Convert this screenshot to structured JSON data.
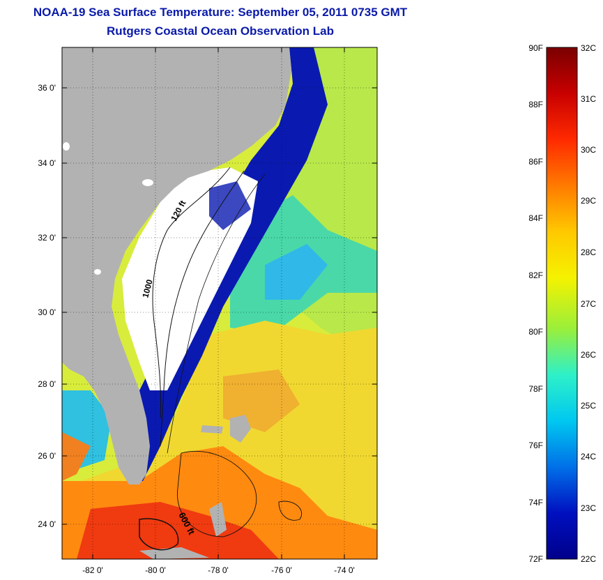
{
  "title": {
    "line1": "NOAA-19 Sea Surface Temperature:  September 05, 2011 0735 GMT",
    "line2": "Rutgers Coastal Ocean Observation Lab"
  },
  "map": {
    "lat_ticks": [
      "36 0'",
      "34 0'",
      "32 0'",
      "30 0'",
      "28 0'",
      "26 0'",
      "24 0'"
    ],
    "lon_ticks": [
      "-82 0'",
      "-80 0'",
      "-78 0'",
      "-76 0'",
      "-74 0'"
    ],
    "contour_labels": [
      "120 ft",
      "1000",
      "600 ft"
    ]
  },
  "colorbar": {
    "fahrenheit_labels": [
      "90F",
      "88F",
      "86F",
      "84F",
      "82F",
      "80F",
      "78F",
      "76F",
      "74F",
      "72F"
    ],
    "celsius_labels": [
      "32C",
      "31C",
      "30C",
      "29C",
      "28C",
      "27C",
      "26C",
      "25C",
      "24C",
      "23C",
      "22C"
    ],
    "gradient_colors": [
      "#7a0000",
      "#c80000",
      "#ff2a00",
      "#ff7a00",
      "#ffc800",
      "#f5f200",
      "#9aef3a",
      "#2ef0c8",
      "#00c8f0",
      "#0070e8",
      "#0010c0",
      "#00008a"
    ]
  }
}
